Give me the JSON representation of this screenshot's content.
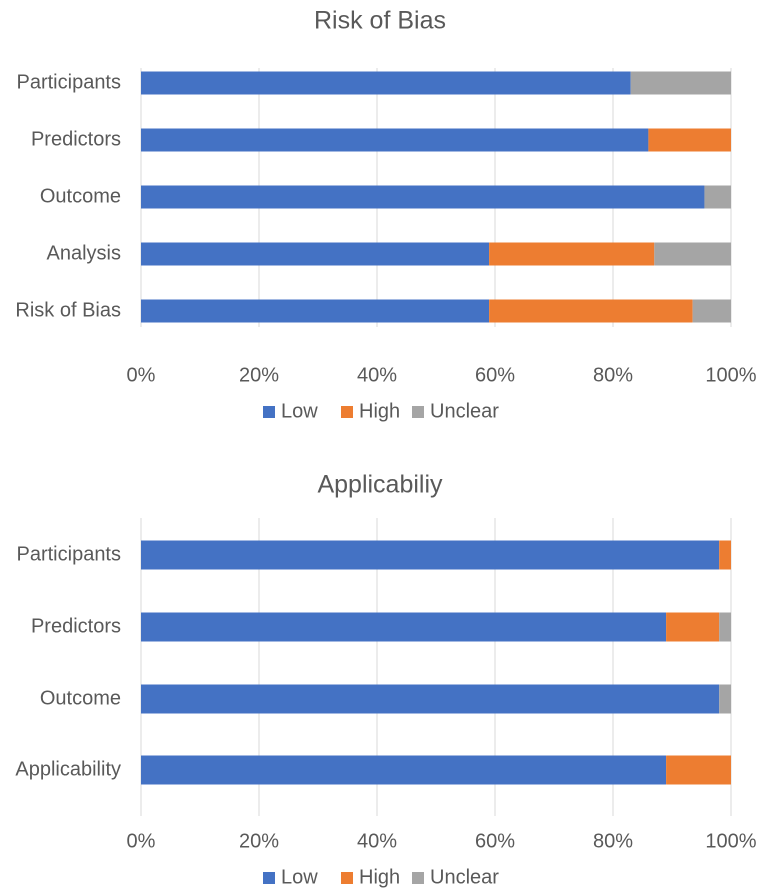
{
  "colors": {
    "Low": "#4472C4",
    "High": "#ED7D31",
    "Unclear": "#A5A5A5",
    "grid": "#d9d9d9",
    "text": "#595959"
  },
  "chart_data": [
    {
      "type": "bar",
      "orientation": "horizontal",
      "stacked": "percent",
      "title": "Risk of Bias",
      "categories": [
        "Participants",
        "Predictors",
        "Outcome",
        "Analysis",
        "Risk of Bias"
      ],
      "series": [
        {
          "name": "Low",
          "values": [
            83,
            86,
            95.5,
            59,
            59
          ]
        },
        {
          "name": "High",
          "values": [
            0,
            14,
            0,
            28,
            34.5
          ]
        },
        {
          "name": "Unclear",
          "values": [
            17,
            0,
            4.5,
            13,
            6.5
          ]
        }
      ],
      "xticks": [
        "0%",
        "20%",
        "40%",
        "60%",
        "80%",
        "100%"
      ],
      "xlim": [
        0,
        100
      ],
      "grid": true,
      "legend": "bottom"
    },
    {
      "type": "bar",
      "orientation": "horizontal",
      "stacked": "percent",
      "title": "Applicabiliy",
      "categories": [
        "Participants",
        "Predictors",
        "Outcome",
        "Applicability"
      ],
      "series": [
        {
          "name": "Low",
          "values": [
            98,
            89,
            98,
            89
          ]
        },
        {
          "name": "High",
          "values": [
            2,
            9,
            0,
            11
          ]
        },
        {
          "name": "Unclear",
          "values": [
            0,
            2,
            2,
            0
          ]
        }
      ],
      "xticks": [
        "0%",
        "20%",
        "40%",
        "60%",
        "80%",
        "100%"
      ],
      "xlim": [
        0,
        100
      ],
      "grid": true,
      "legend": "bottom"
    }
  ]
}
